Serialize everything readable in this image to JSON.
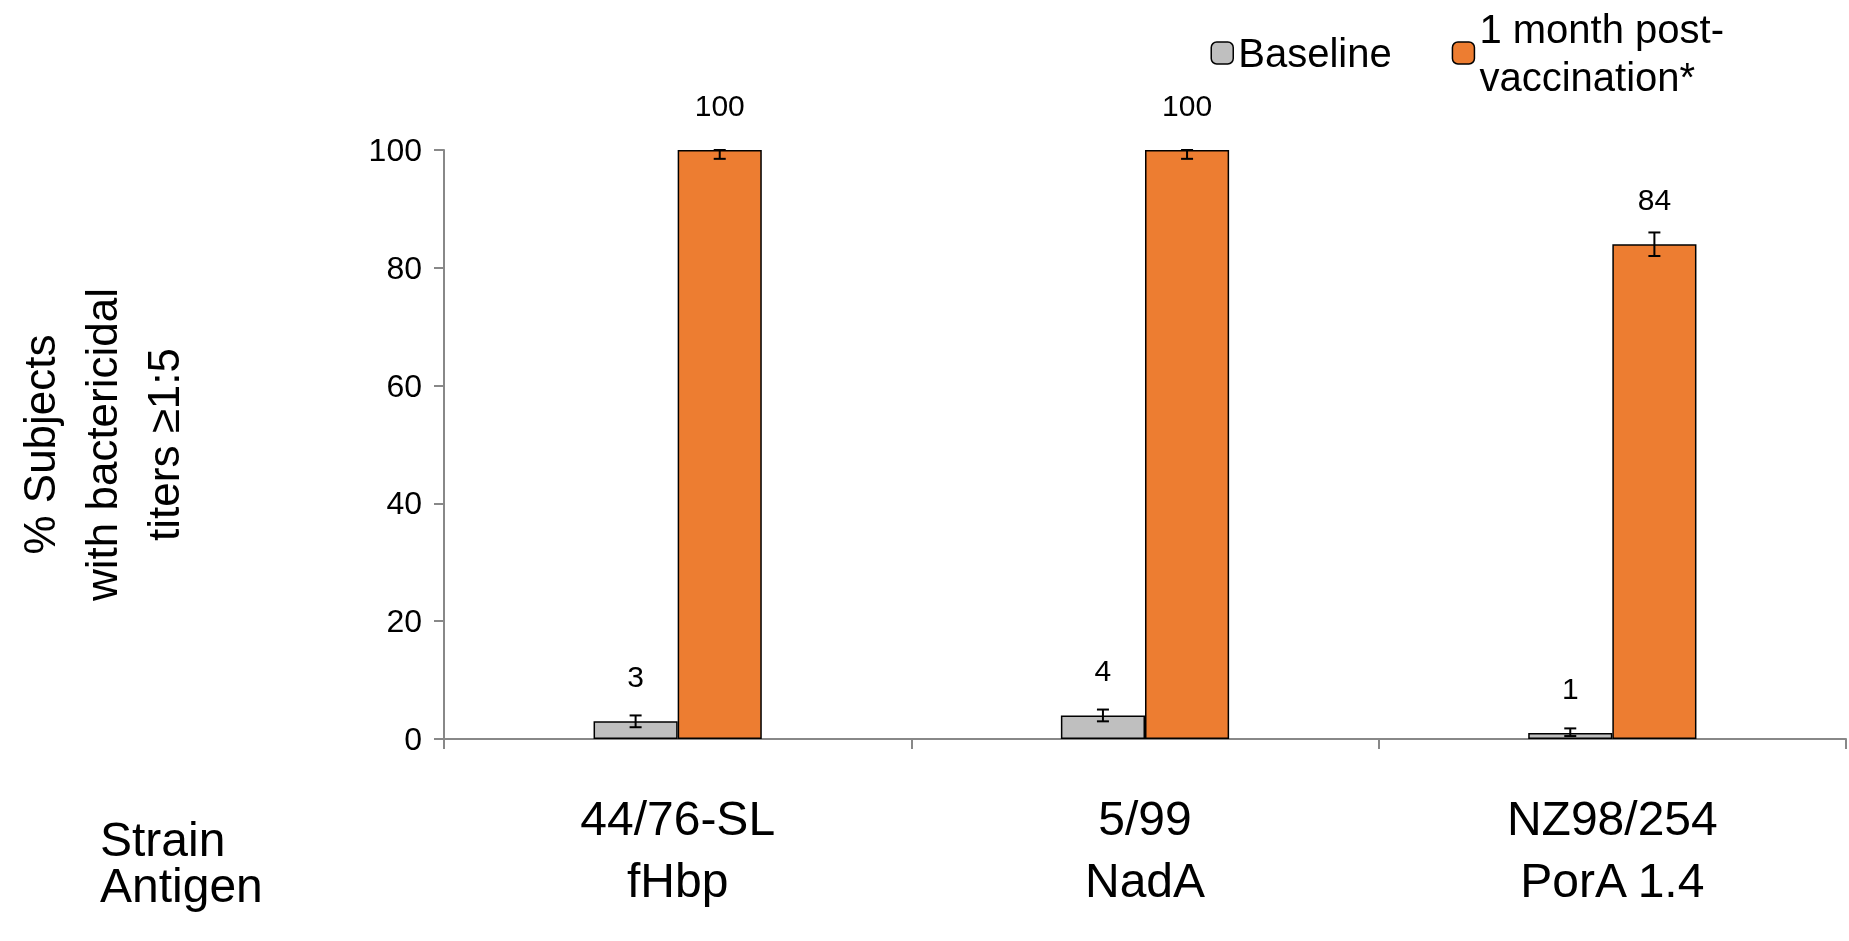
{
  "chart_data": {
    "type": "bar",
    "categories": [
      "44/76-SL\nfHbp",
      "5/99\nNadA",
      "NZ98/254\nPorA 1.4"
    ],
    "xlabel": "Strain\nAntigen",
    "ylabel": "% Subjects\nwith bactericidal\ntiters ≥1:5",
    "series": [
      {
        "name": "Baseline",
        "color": "#bfbfbf",
        "values": [
          3,
          4,
          1
        ],
        "errors": [
          [
            2,
            4
          ],
          [
            3,
            5
          ],
          [
            0.5,
            1.8
          ]
        ]
      },
      {
        "name": "1 month post-\nvaccination*",
        "color": "#ed7d31",
        "values": [
          100,
          100,
          84
        ],
        "errors": [
          [
            98.5,
            100
          ],
          [
            98.5,
            100
          ],
          [
            82,
            86
          ]
        ]
      }
    ],
    "ylim": [
      0,
      100
    ],
    "yticks": [
      0,
      20,
      40,
      60,
      80,
      100
    ],
    "data_labels": true,
    "legend": "top right",
    "grid": false
  }
}
